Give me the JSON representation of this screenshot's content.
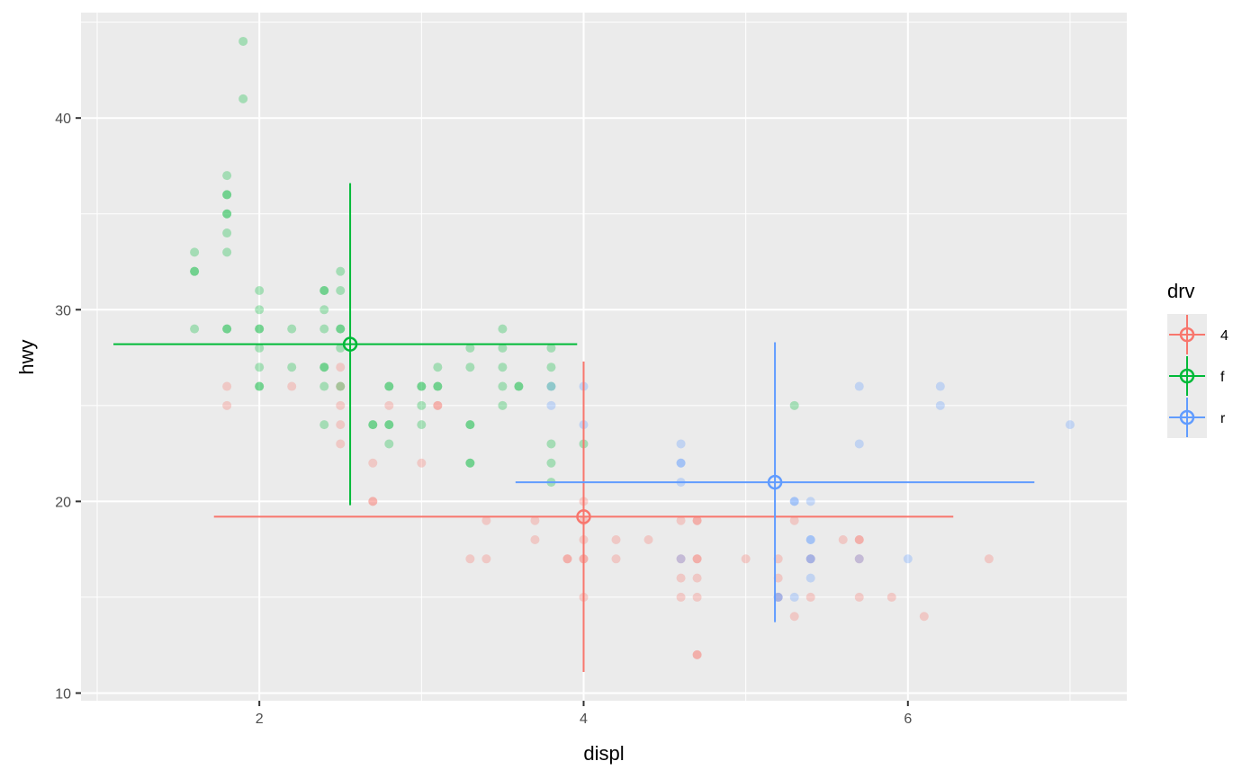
{
  "chart_data": {
    "type": "scatter",
    "xlabel": "displ",
    "ylabel": "hwy",
    "xlim": [
      0.9,
      7.35
    ],
    "ylim": [
      9.6,
      45.5
    ],
    "x_ticks": [
      2,
      4,
      6
    ],
    "x_tick_labels": [
      "2",
      "4",
      "6"
    ],
    "y_ticks": [
      10,
      20,
      30,
      40
    ],
    "y_tick_labels": [
      "10",
      "20",
      "30",
      "40"
    ],
    "grid": true,
    "legend": {
      "title": "drv",
      "position": "right"
    },
    "series": [
      {
        "name": "4",
        "color": "#F8766D",
        "points": [
          [
            1.8,
            26
          ],
          [
            1.8,
            25
          ],
          [
            2.5,
            27
          ],
          [
            2.5,
            26
          ],
          [
            2.5,
            25
          ],
          [
            2.5,
            24
          ],
          [
            2.5,
            23
          ],
          [
            2.2,
            26
          ],
          [
            2.7,
            22
          ],
          [
            2.7,
            20
          ],
          [
            2.7,
            20
          ],
          [
            2.8,
            25
          ],
          [
            3.0,
            22
          ],
          [
            3.1,
            25
          ],
          [
            3.1,
            25
          ],
          [
            3.3,
            17
          ],
          [
            3.4,
            19
          ],
          [
            3.4,
            17
          ],
          [
            3.7,
            19
          ],
          [
            3.7,
            18
          ],
          [
            3.9,
            17
          ],
          [
            3.9,
            17
          ],
          [
            4.0,
            20
          ],
          [
            4.0,
            19
          ],
          [
            4.0,
            18
          ],
          [
            4.0,
            17
          ],
          [
            4.0,
            17
          ],
          [
            4.0,
            15
          ],
          [
            4.2,
            18
          ],
          [
            4.2,
            17
          ],
          [
            4.4,
            18
          ],
          [
            4.6,
            19
          ],
          [
            4.6,
            17
          ],
          [
            4.6,
            16
          ],
          [
            4.6,
            15
          ],
          [
            4.7,
            19
          ],
          [
            4.7,
            19
          ],
          [
            4.7,
            17
          ],
          [
            4.7,
            17
          ],
          [
            4.7,
            16
          ],
          [
            4.7,
            15
          ],
          [
            4.7,
            12
          ],
          [
            4.7,
            12
          ],
          [
            5.0,
            17
          ],
          [
            5.2,
            17
          ],
          [
            5.2,
            16
          ],
          [
            5.2,
            15
          ],
          [
            5.3,
            19
          ],
          [
            5.3,
            14
          ],
          [
            5.4,
            17
          ],
          [
            5.4,
            15
          ],
          [
            5.6,
            18
          ],
          [
            5.7,
            18
          ],
          [
            5.7,
            18
          ],
          [
            5.7,
            17
          ],
          [
            5.7,
            15
          ],
          [
            5.9,
            15
          ],
          [
            6.1,
            14
          ],
          [
            6.5,
            17
          ]
        ],
        "mean": [
          4.0,
          19.2
        ],
        "x_sd_range": [
          1.72,
          6.28
        ],
        "y_sd_range": [
          11.1,
          27.3
        ]
      },
      {
        "name": "f",
        "color": "#00BA38",
        "points": [
          [
            1.8,
            29
          ],
          [
            1.8,
            29
          ],
          [
            2.0,
            31
          ],
          [
            2.0,
            30
          ],
          [
            2.8,
            26
          ],
          [
            2.8,
            26
          ],
          [
            3.1,
            27
          ],
          [
            1.9,
            44
          ],
          [
            1.9,
            41
          ],
          [
            2.0,
            29
          ],
          [
            2.0,
            29
          ],
          [
            2.0,
            28
          ],
          [
            2.0,
            27
          ],
          [
            2.0,
            26
          ],
          [
            2.0,
            26
          ],
          [
            2.2,
            29
          ],
          [
            2.2,
            27
          ],
          [
            2.4,
            31
          ],
          [
            2.4,
            31
          ],
          [
            2.4,
            30
          ],
          [
            2.4,
            29
          ],
          [
            2.4,
            27
          ],
          [
            2.4,
            27
          ],
          [
            2.4,
            26
          ],
          [
            2.4,
            24
          ],
          [
            2.5,
            32
          ],
          [
            2.5,
            31
          ],
          [
            2.5,
            29
          ],
          [
            2.5,
            29
          ],
          [
            2.5,
            28
          ],
          [
            2.5,
            26
          ],
          [
            2.7,
            24
          ],
          [
            2.7,
            24
          ],
          [
            2.8,
            24
          ],
          [
            2.8,
            24
          ],
          [
            2.8,
            23
          ],
          [
            3.0,
            26
          ],
          [
            3.0,
            26
          ],
          [
            3.0,
            25
          ],
          [
            3.0,
            24
          ],
          [
            3.1,
            26
          ],
          [
            3.1,
            26
          ],
          [
            3.3,
            28
          ],
          [
            3.3,
            27
          ],
          [
            3.3,
            24
          ],
          [
            3.3,
            24
          ],
          [
            3.3,
            22
          ],
          [
            3.3,
            22
          ],
          [
            3.5,
            29
          ],
          [
            3.5,
            28
          ],
          [
            3.5,
            27
          ],
          [
            3.5,
            26
          ],
          [
            3.5,
            25
          ],
          [
            3.6,
            26
          ],
          [
            3.6,
            26
          ],
          [
            3.8,
            28
          ],
          [
            3.8,
            27
          ],
          [
            3.8,
            26
          ],
          [
            3.8,
            23
          ],
          [
            3.8,
            22
          ],
          [
            3.8,
            21
          ],
          [
            4.0,
            23
          ],
          [
            5.3,
            25
          ],
          [
            1.6,
            33
          ],
          [
            1.6,
            32
          ],
          [
            1.6,
            32
          ],
          [
            1.6,
            29
          ],
          [
            1.8,
            37
          ],
          [
            1.8,
            36
          ],
          [
            1.8,
            36
          ],
          [
            1.8,
            35
          ],
          [
            1.8,
            35
          ],
          [
            1.8,
            34
          ],
          [
            1.8,
            33
          ]
        ],
        "mean": [
          2.56,
          28.2
        ],
        "x_sd_range": [
          1.1,
          3.96
        ],
        "y_sd_range": [
          19.8,
          36.6
        ]
      },
      {
        "name": "r",
        "color": "#619CFF",
        "points": [
          [
            3.8,
            26
          ],
          [
            3.8,
            25
          ],
          [
            4.0,
            26
          ],
          [
            4.0,
            24
          ],
          [
            4.6,
            23
          ],
          [
            4.6,
            22
          ],
          [
            4.6,
            22
          ],
          [
            4.6,
            21
          ],
          [
            5.4,
            20
          ],
          [
            5.4,
            18
          ],
          [
            5.4,
            17
          ],
          [
            5.4,
            16
          ],
          [
            5.3,
            20
          ],
          [
            5.3,
            20
          ],
          [
            5.3,
            15
          ],
          [
            5.7,
            26
          ],
          [
            5.7,
            23
          ],
          [
            6.2,
            26
          ],
          [
            6.2,
            25
          ],
          [
            7.0,
            24
          ],
          [
            5.2,
            15
          ],
          [
            5.2,
            15
          ],
          [
            6.0,
            17
          ],
          [
            4.6,
            17
          ],
          [
            5.4,
            18
          ],
          [
            5.4,
            17
          ],
          [
            5.7,
            17
          ]
        ],
        "mean": [
          5.18,
          21.0
        ],
        "x_sd_range": [
          3.58,
          6.78
        ],
        "y_sd_range": [
          13.7,
          28.3
        ]
      }
    ]
  }
}
